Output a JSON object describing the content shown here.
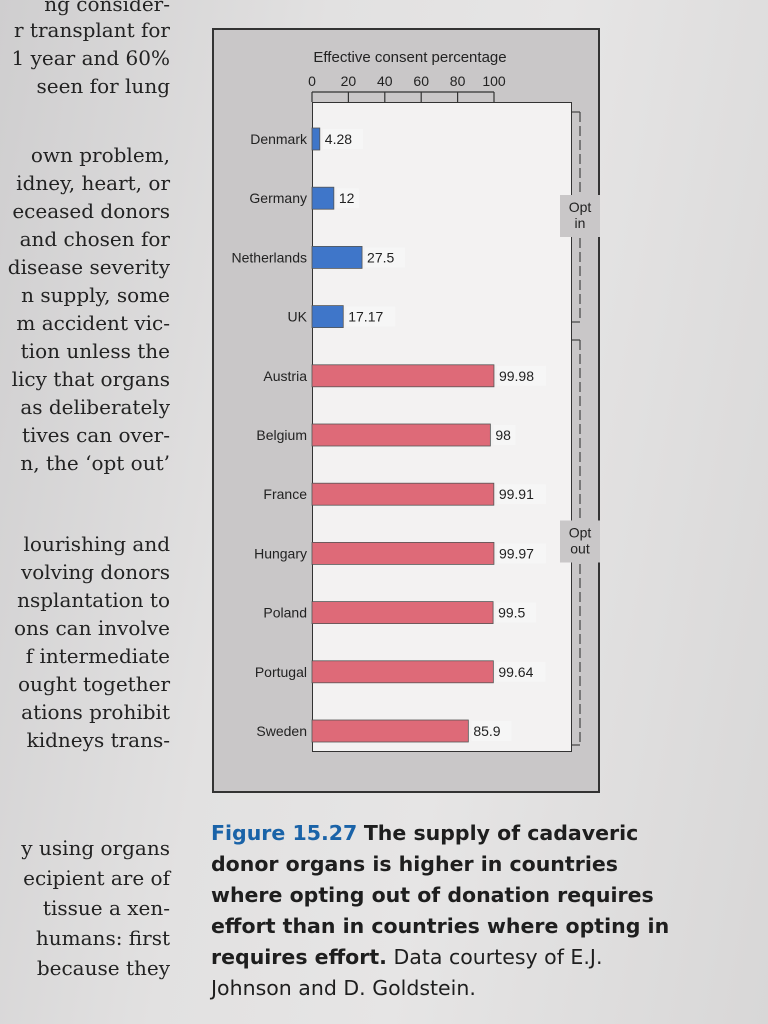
{
  "body_text": [
    "ng consider-",
    "r transplant for",
    "1 year and 60%",
    "seen for lung",
    "own problem,",
    "idney, heart, or",
    "eceased donors",
    "and chosen for",
    "disease severity",
    "n supply, some",
    "m accident vic-",
    "tion unless the",
    "licy that organs",
    "as deliberately",
    "tives can over-",
    "n, the ‘opt out’",
    "lourishing and",
    "volving donors",
    "nsplantation to",
    "ons can involve",
    "f intermediate",
    "ought together",
    "ations prohibit",
    "kidneys trans-",
    "y using organs",
    "ecipient are of",
    "tissue a xen-",
    "humans: first",
    "because they"
  ],
  "caption": {
    "figure_number": "Figure 15.27",
    "title": "The supply of cadaveric donor organs is higher in countries where opting out of donation requires effort than in countries where opting in requires effort.",
    "credit": "Data courtesy of E.J. Johnson and D. Goldstein."
  },
  "colors": {
    "opt_in_bar": "#3f76c9",
    "opt_out_bar": "#de6a78",
    "figure_number": "#1a63a8"
  },
  "chart_data": {
    "type": "bar",
    "orientation": "horizontal",
    "title": "Effective consent percentage",
    "xlim": [
      0,
      100
    ],
    "xticks": [
      0,
      20,
      40,
      60,
      80,
      100
    ],
    "tick_position": "top",
    "grid": false,
    "categories": [
      "Denmark",
      "Germany",
      "Netherlands",
      "UK",
      "Austria",
      "Belgium",
      "France",
      "Hungary",
      "Poland",
      "Portugal",
      "Sweden"
    ],
    "values": [
      4.28,
      12,
      27.5,
      17.17,
      99.98,
      98,
      99.91,
      99.97,
      99.5,
      99.64,
      85.9
    ],
    "value_labels": [
      "4.28",
      "12",
      "27.5",
      "17.17",
      "99.98",
      "98",
      "99.91",
      "99.97",
      "99.5",
      "99.64",
      "85.9"
    ],
    "groups": [
      {
        "label": "Opt in",
        "members": [
          "Denmark",
          "Germany",
          "Netherlands",
          "UK"
        ]
      },
      {
        "label": "Opt out",
        "members": [
          "Austria",
          "Belgium",
          "France",
          "Hungary",
          "Poland",
          "Portugal",
          "Sweden"
        ]
      }
    ]
  }
}
